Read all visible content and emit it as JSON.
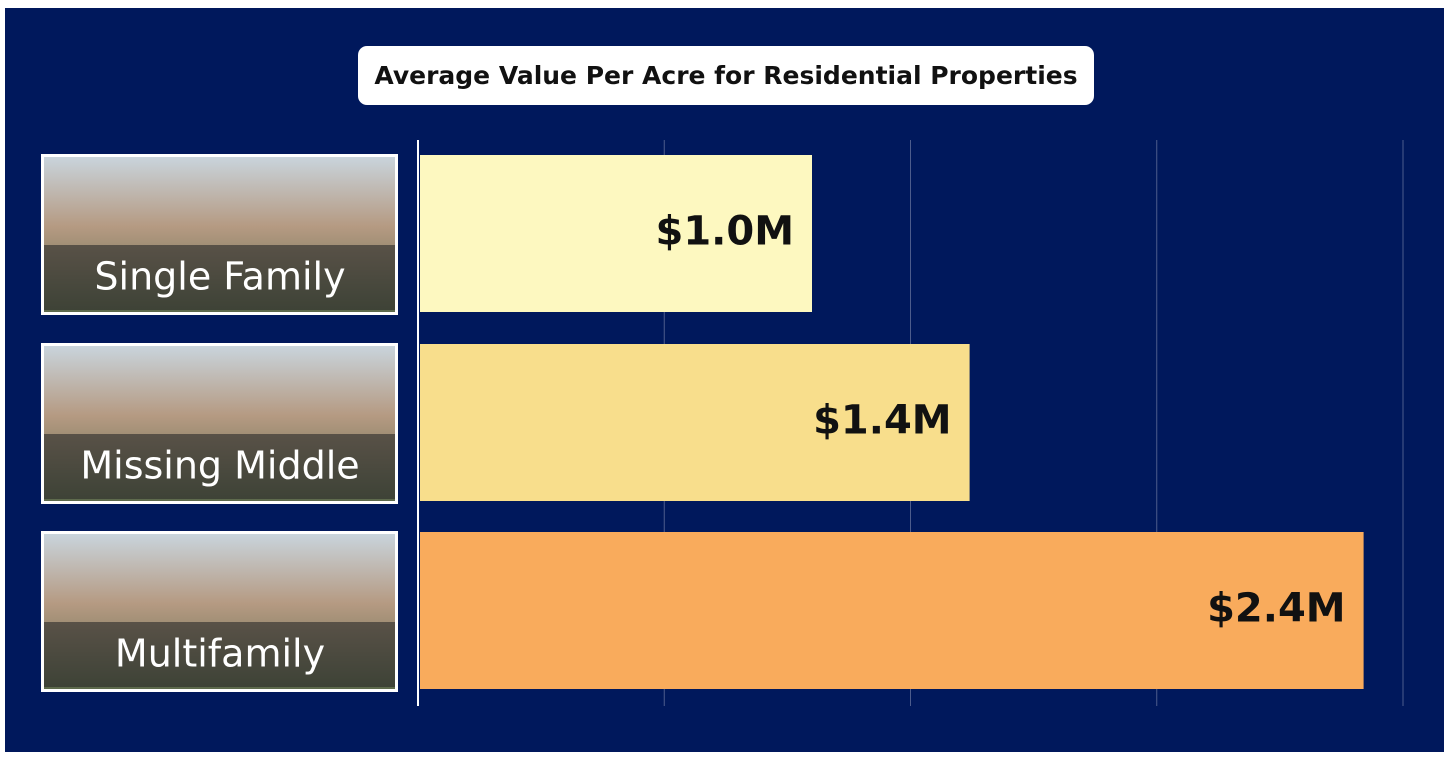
{
  "chart_data": {
    "type": "barh",
    "title": "Average Value Per Acre for Residential Properties",
    "categories": [
      "Single Family",
      "Missing Middle",
      "Multifamily"
    ],
    "values": [
      1000000,
      1400000,
      2400000
    ],
    "value_labels": [
      "$1.0M",
      "$1.4M",
      "$2.4M"
    ],
    "colors": [
      "#fdf8c0",
      "#f8de8c",
      "#f9ab5c"
    ],
    "xlim": [
      0,
      2500000
    ],
    "xticks": [
      0,
      625000,
      1250000,
      1875000,
      2500000
    ],
    "grid": true
  }
}
